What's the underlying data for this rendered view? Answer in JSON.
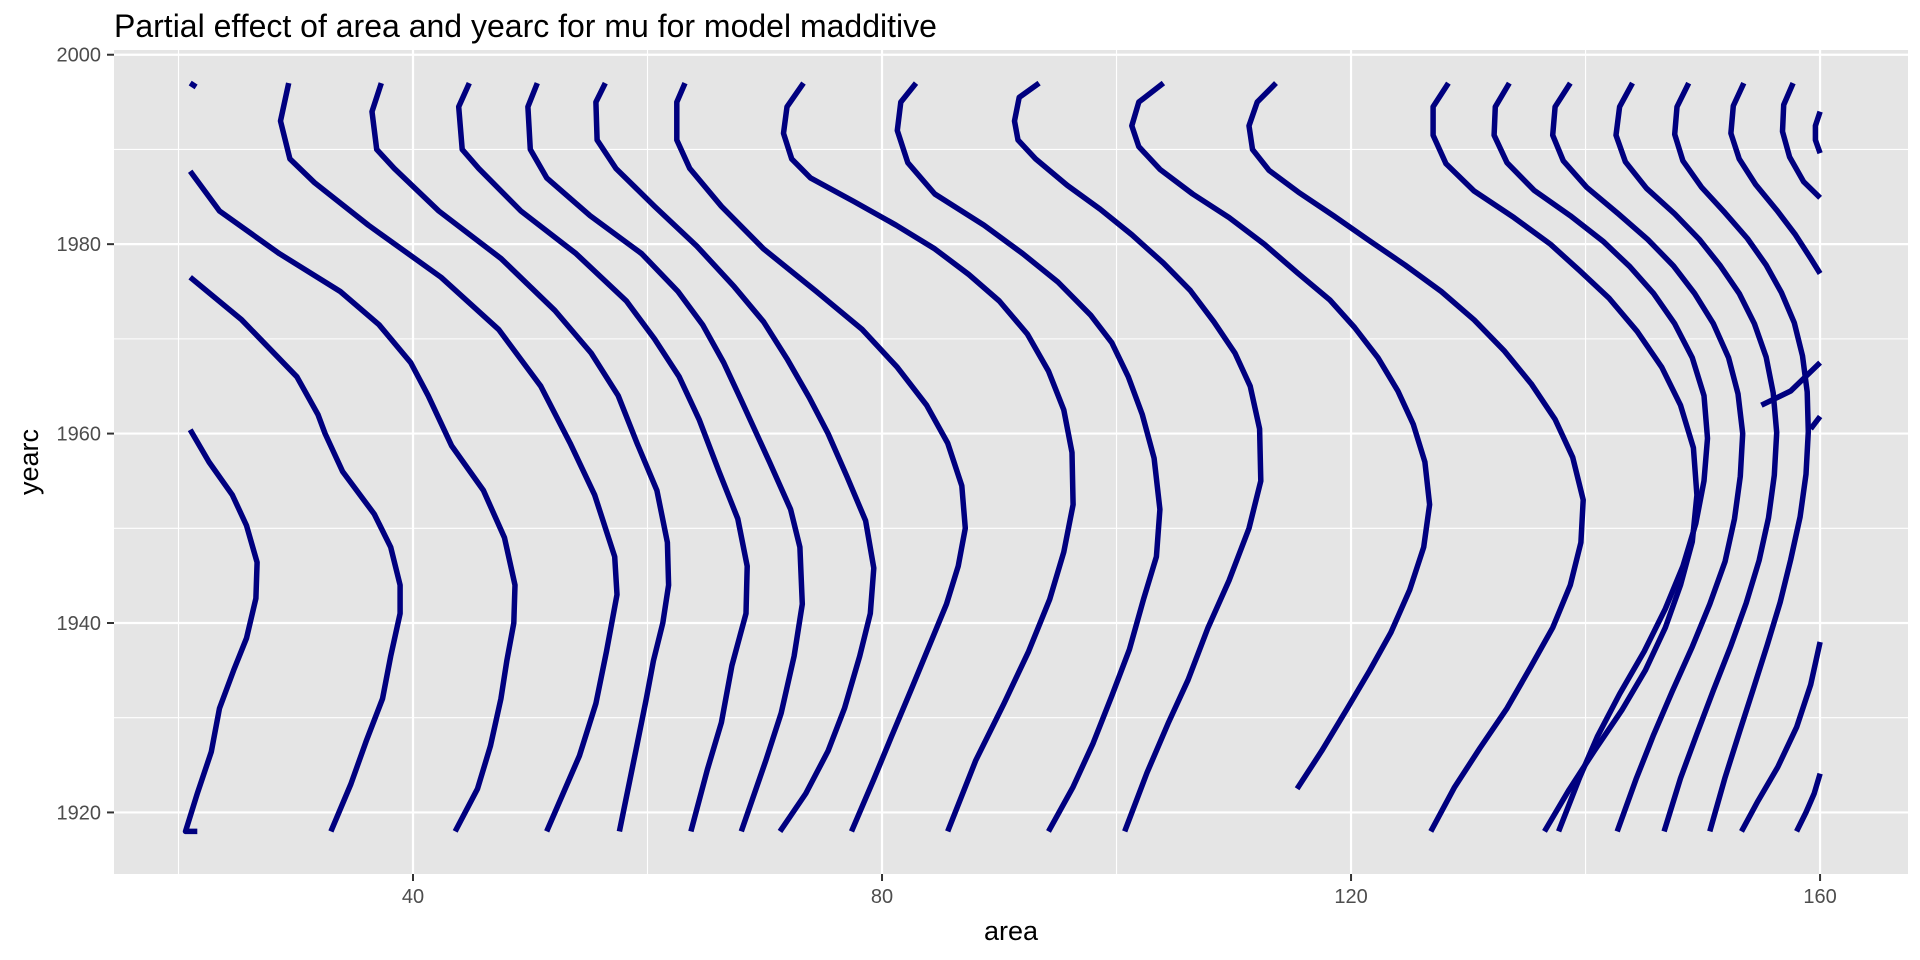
{
  "chart_data": {
    "type": "line",
    "title": "Partial effect of area and yearc for mu for model madditive",
    "xlabel": "area",
    "ylabel": "yearc",
    "xlim": [
      14.5,
      167.5
    ],
    "ylim": [
      1913.5,
      2000.5
    ],
    "x_ticks": [
      40,
      80,
      120,
      160
    ],
    "y_ticks": [
      1920,
      1940,
      1960,
      1980,
      2000
    ],
    "grid": true,
    "legend": "none",
    "line_color": "#00007f",
    "panel_background": "#e5e5e5",
    "series": [
      {
        "x": [
          21.0,
          21.5
        ],
        "y": [
          1997.0,
          1996.6
        ]
      },
      {
        "x": [
          21.0,
          22.6,
          24.6,
          25.8,
          26.7,
          26.6,
          25.8,
          24.7,
          23.5,
          22.8,
          21.6,
          20.6,
          20.6,
          21.6
        ],
        "y": [
          1960.4,
          1957.0,
          1953.5,
          1950.3,
          1946.4,
          1942.6,
          1938.4,
          1935.0,
          1931.0,
          1926.4,
          1922.0,
          1918.0,
          1918.0,
          1918.0
        ]
      },
      {
        "x": [
          21.0,
          25.4,
          30.1,
          31.9,
          32.5,
          34.0,
          36.7,
          38.1,
          38.9,
          38.9,
          38.1,
          37.4,
          36.0,
          34.7,
          33.0
        ],
        "y": [
          1976.5,
          1972.0,
          1966.0,
          1962.0,
          1960.0,
          1956.0,
          1951.5,
          1948.0,
          1944.0,
          1941.0,
          1936.5,
          1932.0,
          1927.5,
          1923.0,
          1918.0
        ]
      },
      {
        "x": [
          21.0,
          23.5,
          28.6,
          33.8,
          37.1,
          39.8,
          41.3,
          43.3,
          46.0,
          47.8,
          48.7,
          48.6,
          48.0,
          47.5,
          46.6,
          45.5,
          43.6
        ],
        "y": [
          1987.7,
          1983.5,
          1979.0,
          1975.0,
          1971.5,
          1967.5,
          1964.0,
          1958.7,
          1954.0,
          1949.0,
          1944.0,
          1940.0,
          1936.0,
          1932.0,
          1927.0,
          1922.5,
          1918.0
        ]
      },
      {
        "x": [
          29.4,
          28.7,
          29.5,
          31.6,
          36.2,
          42.4,
          47.3,
          50.9,
          53.4,
          55.5,
          57.2,
          57.4,
          56.5,
          55.6,
          54.2,
          52.8,
          51.4
        ],
        "y": [
          1997.0,
          1993.0,
          1989.0,
          1986.5,
          1982.0,
          1976.5,
          1971.0,
          1965.0,
          1959.0,
          1953.5,
          1947.0,
          1943.0,
          1937.0,
          1931.5,
          1926.0,
          1922.0,
          1918.0
        ]
      },
      {
        "x": [
          37.3,
          36.5,
          36.9,
          38.4,
          42.2,
          47.5,
          52.1,
          55.2,
          57.5,
          59.1,
          60.8,
          61.7,
          61.8,
          61.3,
          60.5,
          59.9,
          59.0,
          57.6
        ],
        "y": [
          1997.0,
          1994.0,
          1990.0,
          1988.0,
          1983.5,
          1978.5,
          1973.0,
          1968.5,
          1964.0,
          1959.0,
          1954.0,
          1948.5,
          1944.0,
          1940.0,
          1936.0,
          1932.0,
          1926.5,
          1918.0
        ]
      },
      {
        "x": [
          44.8,
          43.9,
          44.2,
          45.6,
          49.2,
          53.9,
          58.2,
          60.6,
          62.7,
          64.4,
          66.1,
          67.7,
          68.5,
          68.4,
          67.2,
          66.3,
          65.1,
          63.7
        ],
        "y": [
          1997.0,
          1994.5,
          1990.0,
          1988.0,
          1983.5,
          1979.0,
          1974.0,
          1970.0,
          1966.0,
          1961.5,
          1956.0,
          1951.0,
          1946.0,
          1941.0,
          1935.5,
          1929.5,
          1924.5,
          1918.0
        ]
      },
      {
        "x": [
          50.6,
          49.8,
          50.0,
          51.4,
          55.1,
          59.5,
          62.6,
          64.7,
          66.5,
          68.0,
          70.4,
          72.2,
          73.0,
          73.2,
          72.5,
          71.4,
          70.1,
          68.0
        ],
        "y": [
          1997.0,
          1994.5,
          1990.0,
          1987.0,
          1983.0,
          1979.0,
          1975.0,
          1971.5,
          1967.5,
          1963.5,
          1957.0,
          1952.0,
          1948.0,
          1942.0,
          1936.5,
          1930.5,
          1925.5,
          1918.0
        ]
      },
      {
        "x": [
          56.4,
          55.6,
          55.7,
          57.3,
          60.6,
          64.2,
          67.4,
          69.9,
          71.9,
          73.8,
          75.4,
          77.0,
          78.6,
          79.3,
          79.0,
          78.1,
          76.8,
          75.4,
          73.5,
          71.3
        ],
        "y": [
          1997.0,
          1995.0,
          1991.0,
          1988.0,
          1984.0,
          1979.8,
          1975.5,
          1971.8,
          1967.9,
          1963.8,
          1960.0,
          1955.5,
          1950.8,
          1945.8,
          1941.0,
          1936.5,
          1931.0,
          1926.5,
          1922.0,
          1918.0
        ]
      },
      {
        "x": [
          63.2,
          62.5,
          62.5,
          63.6,
          66.3,
          69.9,
          74.4,
          78.3,
          81.3,
          83.8,
          85.6,
          86.8,
          87.1,
          86.5,
          85.5,
          84.0,
          82.5,
          80.8,
          79.3,
          77.4
        ],
        "y": [
          1997.0,
          1995.0,
          1991.0,
          1988.0,
          1984.0,
          1979.5,
          1975.0,
          1971.0,
          1967.0,
          1963.0,
          1959.0,
          1954.5,
          1950.0,
          1946.0,
          1942.0,
          1937.5,
          1933.0,
          1928.0,
          1923.5,
          1918.0
        ]
      },
      {
        "x": [
          73.3,
          71.9,
          71.6,
          72.3,
          73.9,
          77.6,
          81.2,
          84.5,
          87.4,
          90.0,
          92.4,
          94.2,
          95.5,
          96.2,
          96.3,
          95.5,
          94.3,
          92.5,
          90.4,
          88.0,
          85.6
        ],
        "y": [
          1997.0,
          1994.5,
          1991.7,
          1989.0,
          1987.0,
          1984.5,
          1982.0,
          1979.5,
          1976.8,
          1974.0,
          1970.5,
          1966.6,
          1962.5,
          1958.0,
          1952.5,
          1947.5,
          1942.5,
          1937.0,
          1931.5,
          1925.5,
          1918.0
        ]
      },
      {
        "x": [
          82.9,
          81.6,
          81.3,
          82.2,
          84.5,
          88.7,
          92.0,
          95.0,
          97.8,
          99.6,
          101.0,
          102.2,
          103.2,
          103.7,
          103.4,
          102.3,
          101.1,
          99.6,
          98.0,
          96.3,
          94.2
        ],
        "y": [
          1997.0,
          1995.0,
          1992.0,
          1988.6,
          1985.3,
          1982.0,
          1979.0,
          1976.0,
          1972.5,
          1969.6,
          1966.0,
          1962.0,
          1957.4,
          1952.0,
          1947.0,
          1942.5,
          1937.2,
          1932.3,
          1927.3,
          1922.7,
          1918.0
        ]
      },
      {
        "x": [
          93.4,
          91.7,
          91.3,
          91.6,
          93.1,
          95.8,
          98.6,
          101.3,
          104.0,
          106.3,
          108.3,
          110.1,
          111.4,
          112.2,
          112.3,
          111.3,
          109.6,
          107.8,
          106.1,
          104.4,
          102.6,
          100.7
        ],
        "y": [
          1997.0,
          1995.5,
          1993.0,
          1991.0,
          1989.0,
          1986.2,
          1983.7,
          1981.0,
          1978.0,
          1975.1,
          1971.8,
          1968.5,
          1965.0,
          1960.5,
          1955.0,
          1950.0,
          1944.5,
          1939.5,
          1934.0,
          1929.4,
          1924.2,
          1918.0
        ]
      },
      {
        "x": [
          104.0,
          101.9,
          101.3,
          101.9,
          103.7,
          106.5,
          109.6,
          112.6,
          115.4,
          118.2,
          120.3,
          122.3,
          124.0,
          125.3,
          126.3,
          126.7,
          126.2,
          125.0,
          123.4,
          121.6,
          119.6,
          117.5,
          115.4
        ],
        "y": [
          1997.0,
          1995.0,
          1992.5,
          1990.3,
          1987.9,
          1985.3,
          1982.8,
          1980.0,
          1977.0,
          1974.1,
          1971.2,
          1968.0,
          1964.5,
          1961.0,
          1957.0,
          1952.5,
          1948.0,
          1943.5,
          1939.0,
          1935.0,
          1930.8,
          1926.5,
          1922.5
        ]
      },
      {
        "x": [
          113.6,
          112.0,
          111.3,
          111.6,
          113.0,
          115.5,
          118.5,
          121.4,
          124.6,
          127.7,
          130.5,
          133.1,
          135.4,
          137.4,
          138.9,
          139.8,
          139.6,
          138.7,
          137.2,
          135.3,
          133.3,
          131.0,
          128.8,
          126.8
        ],
        "y": [
          1997.0,
          1995.0,
          1992.5,
          1990.0,
          1987.8,
          1985.5,
          1983.0,
          1980.5,
          1977.8,
          1975.0,
          1972.0,
          1968.7,
          1965.2,
          1961.5,
          1957.5,
          1953.0,
          1948.5,
          1944.0,
          1939.5,
          1935.3,
          1931.0,
          1926.8,
          1922.6,
          1918.0
        ]
      },
      {
        "x": [
          128.3,
          127.0,
          127.0,
          128.1,
          130.5,
          133.9,
          137.0,
          139.5,
          142.0,
          144.4,
          146.5,
          148.1,
          149.2,
          149.5,
          149.1,
          148.1,
          146.8,
          145.1,
          143.1,
          140.8,
          138.6,
          136.5
        ],
        "y": [
          1997.0,
          1994.5,
          1991.5,
          1988.5,
          1985.6,
          1982.8,
          1980.0,
          1977.2,
          1974.3,
          1970.8,
          1967.0,
          1963.0,
          1958.5,
          1953.5,
          1948.6,
          1944.0,
          1939.5,
          1935.0,
          1930.8,
          1926.6,
          1922.4,
          1918.0
        ]
      },
      {
        "x": [
          133.5,
          132.3,
          132.2,
          133.3,
          135.6,
          138.7,
          141.5,
          143.8,
          145.8,
          147.6,
          149.1,
          150.1,
          150.4,
          150.1,
          149.4,
          148.3,
          146.8,
          145.0,
          142.9,
          141.0,
          139.5,
          137.7
        ],
        "y": [
          1997.0,
          1994.5,
          1991.5,
          1988.6,
          1985.7,
          1983.0,
          1980.3,
          1977.6,
          1974.8,
          1971.6,
          1968.0,
          1964.0,
          1959.5,
          1955.0,
          1950.5,
          1946.0,
          1941.5,
          1937.0,
          1932.5,
          1928.0,
          1923.7,
          1918.0
        ]
      },
      {
        "x": [
          138.7,
          137.4,
          137.2,
          138.1,
          140.1,
          142.8,
          145.3,
          147.5,
          149.3,
          150.9,
          152.2,
          153.0,
          153.4,
          153.2,
          152.7,
          151.9,
          150.6,
          149.1,
          147.4,
          145.8,
          144.3,
          142.7
        ],
        "y": [
          1997.0,
          1994.5,
          1991.5,
          1988.8,
          1986.0,
          1983.2,
          1980.5,
          1977.7,
          1974.8,
          1971.6,
          1968.0,
          1964.2,
          1960.0,
          1955.5,
          1951.0,
          1946.5,
          1942.0,
          1937.5,
          1932.8,
          1928.2,
          1923.5,
          1918.0
        ]
      },
      {
        "x": [
          144.0,
          142.9,
          142.6,
          143.4,
          145.2,
          147.6,
          149.7,
          151.5,
          153.1,
          154.4,
          155.4,
          156.0,
          156.3,
          156.1,
          155.6,
          154.8,
          153.7,
          152.4,
          150.9,
          149.5,
          148.1,
          146.7
        ],
        "y": [
          1997.0,
          1994.5,
          1991.5,
          1988.7,
          1985.9,
          1983.2,
          1980.5,
          1977.7,
          1974.8,
          1971.6,
          1968.1,
          1964.3,
          1960.1,
          1955.6,
          1951.1,
          1946.6,
          1942.1,
          1937.6,
          1932.9,
          1928.3,
          1923.6,
          1918.0
        ]
      },
      {
        "x": [
          148.8,
          147.8,
          147.6,
          148.3,
          149.9,
          151.9,
          153.8,
          155.4,
          156.7,
          157.8,
          158.5,
          158.9,
          159.0,
          158.8,
          158.3,
          157.5,
          156.6,
          155.5,
          154.3,
          153.1,
          151.9,
          150.6
        ],
        "y": [
          1997.0,
          1994.5,
          1991.6,
          1988.8,
          1986.0,
          1983.3,
          1980.6,
          1977.8,
          1974.9,
          1971.7,
          1968.2,
          1964.4,
          1960.2,
          1955.7,
          1951.2,
          1946.7,
          1942.2,
          1937.7,
          1933.0,
          1928.4,
          1923.7,
          1918.0
        ]
      },
      {
        "x": [
          153.5,
          152.6,
          152.4,
          153.1,
          154.5,
          156.3,
          157.9,
          159.2,
          160.0
        ],
        "y": [
          1997.0,
          1994.6,
          1991.7,
          1989.0,
          1986.3,
          1983.6,
          1981.0,
          1978.5,
          1976.9
        ]
      },
      {
        "x": [
          157.7,
          156.9,
          156.8,
          157.4,
          158.6,
          160.0
        ],
        "y": [
          1997.0,
          1994.7,
          1991.9,
          1989.2,
          1986.6,
          1984.9
        ]
      },
      {
        "x": [
          160.0,
          159.6,
          159.6,
          160.0
        ],
        "y": [
          1994.0,
          1992.5,
          1991.0,
          1989.6
        ]
      },
      {
        "x": [
          158.0,
          158.8,
          159.5,
          160.0
        ],
        "y": [
          1918.0,
          1920.0,
          1922.0,
          1924.1
        ]
      },
      {
        "x": [
          153.3,
          154.7,
          156.4,
          158.0,
          159.2,
          160.0
        ],
        "y": [
          1918.0,
          1921.2,
          1924.8,
          1929.0,
          1933.5,
          1938.0
        ]
      },
      {
        "x": [
          159.2,
          160.0
        ],
        "y": [
          1960.5,
          1961.8
        ]
      },
      {
        "x": [
          155.0,
          157.5,
          160.0
        ],
        "y": [
          1963.0,
          1964.5,
          1967.5
        ]
      }
    ]
  }
}
